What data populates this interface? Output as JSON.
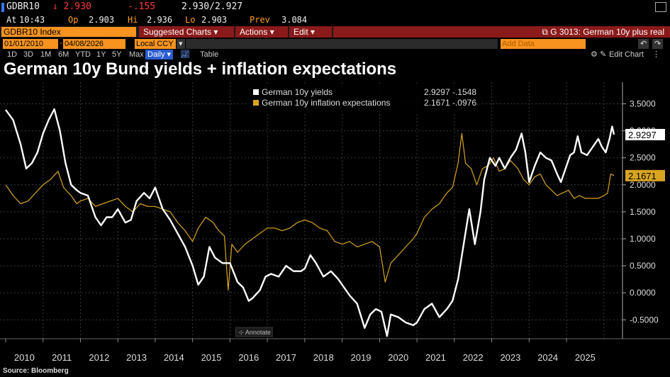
{
  "quote": {
    "ticker": "GDBR10",
    "last": "↓ 2.930",
    "change": "-.155",
    "bid_ask": "2.930/2.927",
    "time_label": "At",
    "time": "10:43",
    "open_label": "Op",
    "open": "2.903",
    "high_label": "Hi",
    "high": "2.936",
    "low_label": "Lo",
    "low": "2.903",
    "prev_label": "Prev",
    "prev": "3.084"
  },
  "toolbar": {
    "security": "GDBR10 Index",
    "suggested_charts": "Suggested Charts",
    "actions": "Actions",
    "edit": "Edit",
    "chart_ref": "G 3013: German 10y plus real",
    "start_date": "01/01/2010",
    "end_date": "04/08/2026",
    "currency": "Local CCY",
    "periodicity": "Daily ▾",
    "table": "Table",
    "add_data": "Add Data",
    "edit_chart": "Edit Chart",
    "periods": [
      "1D",
      "3D",
      "1M",
      "6M",
      "YTD",
      "1Y",
      "5Y",
      "Max"
    ]
  },
  "title": "German 10y Bund yields + inflation expectations",
  "source": "Source: Bloomberg",
  "annotate": "Annotate",
  "colors": {
    "yields": "#ffffff",
    "inflation": "#d9a521",
    "orange": "#f7931e",
    "red_menu": "#8b1a1a"
  },
  "chart_data": {
    "type": "line",
    "x_range": [
      2010.0,
      2026.27
    ],
    "ylim": [
      -0.85,
      3.9
    ],
    "y_ticks": [
      "3.5000",
      "3.0000",
      "2.5000",
      "2.0000",
      "1.5000",
      "1.0000",
      "0.5000",
      "0.0000",
      "-0.5000"
    ],
    "y_tick_values": [
      3.5,
      3.0,
      2.5,
      2.0,
      1.5,
      1.0,
      0.5,
      0.0,
      -0.5
    ],
    "x_ticks": [
      "2010",
      "2011",
      "2012",
      "2013",
      "2014",
      "2015",
      "2016",
      "2017",
      "2018",
      "2019",
      "2020",
      "2021",
      "2022",
      "2023",
      "2024",
      "2025"
    ],
    "legend_placement": "top-center",
    "series": [
      {
        "name": "German 10y yields",
        "legend_values": "2.9297  -.1548",
        "last_label": "2.9297",
        "points": [
          [
            2010.0,
            3.39
          ],
          [
            2010.2,
            3.2
          ],
          [
            2010.4,
            2.75
          ],
          [
            2010.55,
            2.3
          ],
          [
            2010.7,
            2.4
          ],
          [
            2010.85,
            2.6
          ],
          [
            2011.0,
            2.95
          ],
          [
            2011.15,
            3.2
          ],
          [
            2011.3,
            3.4
          ],
          [
            2011.45,
            3.0
          ],
          [
            2011.6,
            2.4
          ],
          [
            2011.75,
            2.0
          ],
          [
            2011.9,
            1.9
          ],
          [
            2012.0,
            1.85
          ],
          [
            2012.2,
            1.8
          ],
          [
            2012.4,
            1.4
          ],
          [
            2012.55,
            1.25
          ],
          [
            2012.7,
            1.4
          ],
          [
            2012.85,
            1.4
          ],
          [
            2013.0,
            1.55
          ],
          [
            2013.2,
            1.3
          ],
          [
            2013.35,
            1.35
          ],
          [
            2013.5,
            1.7
          ],
          [
            2013.7,
            1.85
          ],
          [
            2013.85,
            1.75
          ],
          [
            2014.0,
            1.95
          ],
          [
            2014.2,
            1.55
          ],
          [
            2014.4,
            1.35
          ],
          [
            2014.6,
            1.1
          ],
          [
            2014.8,
            0.85
          ],
          [
            2015.0,
            0.5
          ],
          [
            2015.15,
            0.15
          ],
          [
            2015.3,
            0.3
          ],
          [
            2015.45,
            0.85
          ],
          [
            2015.6,
            0.65
          ],
          [
            2015.8,
            0.55
          ],
          [
            2016.0,
            0.55
          ],
          [
            2016.2,
            0.2
          ],
          [
            2016.35,
            0.1
          ],
          [
            2016.5,
            -0.15
          ],
          [
            2016.6,
            -0.1
          ],
          [
            2016.8,
            0.05
          ],
          [
            2016.95,
            0.3
          ],
          [
            2017.1,
            0.35
          ],
          [
            2017.3,
            0.3
          ],
          [
            2017.5,
            0.5
          ],
          [
            2017.7,
            0.4
          ],
          [
            2017.9,
            0.4
          ],
          [
            2018.0,
            0.45
          ],
          [
            2018.15,
            0.7
          ],
          [
            2018.3,
            0.55
          ],
          [
            2018.5,
            0.3
          ],
          [
            2018.7,
            0.4
          ],
          [
            2018.9,
            0.25
          ],
          [
            2019.0,
            0.15
          ],
          [
            2019.2,
            -0.05
          ],
          [
            2019.4,
            -0.2
          ],
          [
            2019.6,
            -0.65
          ],
          [
            2019.75,
            -0.4
          ],
          [
            2019.9,
            -0.3
          ],
          [
            2020.05,
            -0.35
          ],
          [
            2020.2,
            -0.8
          ],
          [
            2020.3,
            -0.4
          ],
          [
            2020.5,
            -0.45
          ],
          [
            2020.7,
            -0.55
          ],
          [
            2020.9,
            -0.6
          ],
          [
            2021.0,
            -0.55
          ],
          [
            2021.2,
            -0.3
          ],
          [
            2021.4,
            -0.2
          ],
          [
            2021.6,
            -0.45
          ],
          [
            2021.8,
            -0.3
          ],
          [
            2021.95,
            -0.15
          ],
          [
            2022.1,
            0.25
          ],
          [
            2022.25,
            0.9
          ],
          [
            2022.4,
            1.55
          ],
          [
            2022.55,
            0.9
          ],
          [
            2022.7,
            1.5
          ],
          [
            2022.8,
            2.1
          ],
          [
            2022.95,
            2.5
          ],
          [
            2023.1,
            2.35
          ],
          [
            2023.2,
            2.5
          ],
          [
            2023.35,
            2.3
          ],
          [
            2023.5,
            2.5
          ],
          [
            2023.65,
            2.65
          ],
          [
            2023.8,
            2.95
          ],
          [
            2023.9,
            2.6
          ],
          [
            2024.0,
            2.05
          ],
          [
            2024.15,
            2.35
          ],
          [
            2024.3,
            2.6
          ],
          [
            2024.45,
            2.5
          ],
          [
            2024.6,
            2.45
          ],
          [
            2024.75,
            2.2
          ],
          [
            2024.85,
            2.05
          ],
          [
            2025.0,
            2.35
          ],
          [
            2025.1,
            2.55
          ],
          [
            2025.2,
            2.6
          ],
          [
            2025.3,
            2.9
          ],
          [
            2025.4,
            2.6
          ],
          [
            2025.55,
            2.55
          ],
          [
            2025.7,
            2.7
          ],
          [
            2025.85,
            2.85
          ],
          [
            2025.95,
            2.7
          ],
          [
            2026.05,
            2.6
          ],
          [
            2026.15,
            2.85
          ],
          [
            2026.22,
            3.08
          ],
          [
            2026.27,
            2.93
          ]
        ]
      },
      {
        "name": "German 10y inflation expectations",
        "legend_values": "2.1671  -.0976",
        "last_label": "2.1671",
        "points": [
          [
            2010.0,
            2.0
          ],
          [
            2010.2,
            1.8
          ],
          [
            2010.4,
            1.65
          ],
          [
            2010.6,
            1.7
          ],
          [
            2010.8,
            1.85
          ],
          [
            2011.0,
            2.0
          ],
          [
            2011.2,
            2.1
          ],
          [
            2011.4,
            2.25
          ],
          [
            2011.55,
            1.95
          ],
          [
            2011.75,
            1.8
          ],
          [
            2011.9,
            1.65
          ],
          [
            2012.0,
            1.7
          ],
          [
            2012.2,
            1.75
          ],
          [
            2012.4,
            1.6
          ],
          [
            2012.6,
            1.65
          ],
          [
            2012.8,
            1.7
          ],
          [
            2013.0,
            1.75
          ],
          [
            2013.2,
            1.6
          ],
          [
            2013.4,
            1.5
          ],
          [
            2013.6,
            1.65
          ],
          [
            2013.8,
            1.6
          ],
          [
            2014.0,
            1.6
          ],
          [
            2014.2,
            1.55
          ],
          [
            2014.4,
            1.5
          ],
          [
            2014.6,
            1.3
          ],
          [
            2014.8,
            1.15
          ],
          [
            2015.0,
            0.95
          ],
          [
            2015.15,
            1.2
          ],
          [
            2015.35,
            1.4
          ],
          [
            2015.55,
            1.3
          ],
          [
            2015.7,
            1.15
          ],
          [
            2015.85,
            1.05
          ],
          [
            2015.95,
            0.05
          ],
          [
            2016.05,
            0.9
          ],
          [
            2016.2,
            0.75
          ],
          [
            2016.4,
            0.9
          ],
          [
            2016.6,
            1.0
          ],
          [
            2016.8,
            1.1
          ],
          [
            2017.0,
            1.2
          ],
          [
            2017.2,
            1.2
          ],
          [
            2017.4,
            1.15
          ],
          [
            2017.6,
            1.2
          ],
          [
            2017.8,
            1.3
          ],
          [
            2018.0,
            1.35
          ],
          [
            2018.2,
            1.3
          ],
          [
            2018.4,
            1.2
          ],
          [
            2018.6,
            1.15
          ],
          [
            2018.8,
            0.95
          ],
          [
            2019.0,
            0.9
          ],
          [
            2019.2,
            0.95
          ],
          [
            2019.4,
            0.85
          ],
          [
            2019.6,
            0.9
          ],
          [
            2019.8,
            0.95
          ],
          [
            2020.0,
            0.85
          ],
          [
            2020.15,
            0.2
          ],
          [
            2020.3,
            0.55
          ],
          [
            2020.5,
            0.7
          ],
          [
            2020.7,
            0.85
          ],
          [
            2020.9,
            1.0
          ],
          [
            2021.0,
            1.1
          ],
          [
            2021.2,
            1.4
          ],
          [
            2021.4,
            1.55
          ],
          [
            2021.6,
            1.65
          ],
          [
            2021.8,
            1.85
          ],
          [
            2021.95,
            1.95
          ],
          [
            2022.1,
            2.4
          ],
          [
            2022.2,
            2.95
          ],
          [
            2022.3,
            2.4
          ],
          [
            2022.45,
            2.3
          ],
          [
            2022.6,
            2.0
          ],
          [
            2022.75,
            2.3
          ],
          [
            2022.9,
            2.35
          ],
          [
            2023.05,
            2.5
          ],
          [
            2023.2,
            2.25
          ],
          [
            2023.35,
            2.3
          ],
          [
            2023.5,
            2.45
          ],
          [
            2023.7,
            2.3
          ],
          [
            2023.85,
            2.1
          ],
          [
            2024.0,
            2.0
          ],
          [
            2024.15,
            2.15
          ],
          [
            2024.3,
            2.2
          ],
          [
            2024.45,
            2.0
          ],
          [
            2024.6,
            1.9
          ],
          [
            2024.75,
            1.8
          ],
          [
            2024.9,
            1.85
          ],
          [
            2025.05,
            1.9
          ],
          [
            2025.2,
            1.75
          ],
          [
            2025.35,
            1.8
          ],
          [
            2025.5,
            1.75
          ],
          [
            2025.7,
            1.75
          ],
          [
            2025.85,
            1.75
          ],
          [
            2026.0,
            1.8
          ],
          [
            2026.1,
            1.85
          ],
          [
            2026.18,
            2.2
          ],
          [
            2026.27,
            2.17
          ]
        ]
      }
    ]
  }
}
